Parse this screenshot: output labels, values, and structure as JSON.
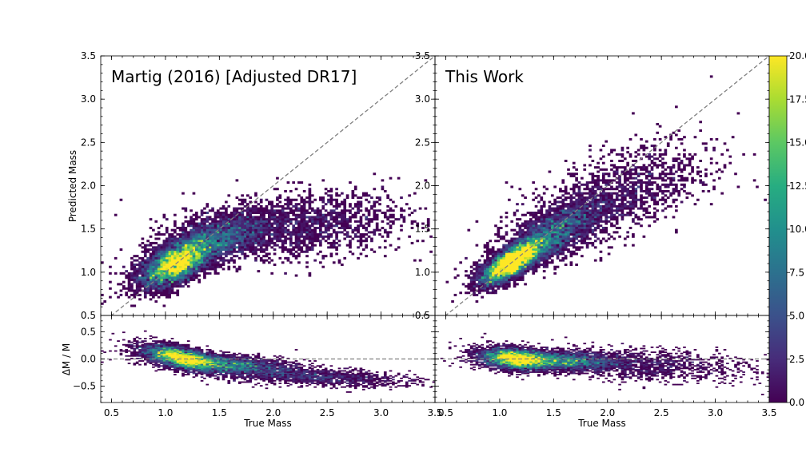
{
  "chart_data": [
    {
      "type": "heatmap",
      "panel": "top-left",
      "annotation": "Martig (2016) [Adjusted DR17]",
      "xlabel": "",
      "ylabel": "Predicted Mass",
      "xlim": [
        0.4,
        3.5
      ],
      "ylim": [
        0.5,
        3.5
      ],
      "xticks": [
        "0.5",
        "1.0",
        "1.5",
        "2.0",
        "2.5",
        "3.0",
        "3.5"
      ],
      "yticks": [
        "0.5",
        "1.0",
        "1.5",
        "2.0",
        "2.5",
        "3.0",
        "3.5"
      ],
      "reference_line": "y = x (dashed grey)",
      "clusters": [
        {
          "x": 1.1,
          "y": 1.1,
          "sx": 0.14,
          "sy": 0.14,
          "rho": 0.6,
          "weight": 0.55
        },
        {
          "x": 1.5,
          "y": 1.4,
          "sx": 0.22,
          "sy": 0.15,
          "rho": 0.5,
          "weight": 0.28
        },
        {
          "x": 2.3,
          "y": 1.55,
          "sx": 0.4,
          "sy": 0.2,
          "rho": 0.2,
          "weight": 0.17
        }
      ]
    },
    {
      "type": "heatmap",
      "panel": "top-right",
      "annotation": "This Work",
      "xlabel": "",
      "ylabel": "",
      "xlim": [
        0.4,
        3.5
      ],
      "ylim": [
        0.5,
        3.5
      ],
      "xticks": [
        "0.5",
        "1.0",
        "1.5",
        "2.0",
        "2.5",
        "3.0",
        "3.5"
      ],
      "yticks": [
        "0.5",
        "1.0",
        "1.5",
        "2.0",
        "2.5",
        "3.0",
        "3.5"
      ],
      "reference_line": "y = x (dashed grey)",
      "clusters": [
        {
          "x": 1.12,
          "y": 1.12,
          "sx": 0.12,
          "sy": 0.13,
          "rho": 0.75,
          "weight": 0.55
        },
        {
          "x": 1.5,
          "y": 1.45,
          "sx": 0.2,
          "sy": 0.2,
          "rho": 0.7,
          "weight": 0.3
        },
        {
          "x": 2.1,
          "y": 1.9,
          "sx": 0.35,
          "sy": 0.3,
          "rho": 0.6,
          "weight": 0.15
        }
      ]
    },
    {
      "type": "heatmap",
      "panel": "bottom-left",
      "xlabel": "True Mass",
      "ylabel": "ΔM / M",
      "xlim": [
        0.4,
        3.5
      ],
      "ylim": [
        -0.8,
        0.8
      ],
      "xticks": [
        "0.5",
        "1.0",
        "1.5",
        "2.0",
        "2.5",
        "3.0",
        "3.5"
      ],
      "yticks": [
        "−0.5",
        "0.0",
        "0.5"
      ],
      "reference_line": "y = 0 (dashed grey)",
      "clusters": [
        {
          "x": 1.15,
          "y": 0.02,
          "sx": 0.15,
          "sy": 0.12,
          "rho": -0.6,
          "weight": 0.55
        },
        {
          "x": 1.6,
          "y": -0.1,
          "sx": 0.25,
          "sy": 0.1,
          "rho": -0.5,
          "weight": 0.3
        },
        {
          "x": 2.4,
          "y": -0.33,
          "sx": 0.35,
          "sy": 0.09,
          "rho": -0.4,
          "weight": 0.15
        }
      ]
    },
    {
      "type": "heatmap",
      "panel": "bottom-right",
      "xlabel": "True Mass",
      "ylabel": "",
      "xlim": [
        0.4,
        3.5
      ],
      "ylim": [
        -0.8,
        0.8
      ],
      "xticks": [
        "0.5",
        "1.0",
        "1.5",
        "2.0",
        "2.5",
        "3.0",
        "3.5"
      ],
      "yticks": [],
      "reference_line": "y = 0 (dashed grey)",
      "clusters": [
        {
          "x": 1.15,
          "y": 0.0,
          "sx": 0.14,
          "sy": 0.1,
          "rho": -0.3,
          "weight": 0.55
        },
        {
          "x": 1.6,
          "y": -0.03,
          "sx": 0.22,
          "sy": 0.09,
          "rho": -0.3,
          "weight": 0.3
        },
        {
          "x": 2.3,
          "y": -0.1,
          "sx": 0.4,
          "sy": 0.15,
          "rho": -0.3,
          "weight": 0.15
        }
      ]
    }
  ],
  "colorbar": {
    "colormap": "viridis",
    "range": [
      0.0,
      20.0
    ],
    "ticks": [
      "0.0",
      "2.5",
      "5.0",
      "7.5",
      "10.0",
      "12.5",
      "15.0",
      "17.5",
      "20.0"
    ],
    "stops": [
      "#440154",
      "#472c7a",
      "#3b518b",
      "#2c718e",
      "#21908d",
      "#27ad81",
      "#5cc863",
      "#aadc32",
      "#fde725"
    ]
  }
}
